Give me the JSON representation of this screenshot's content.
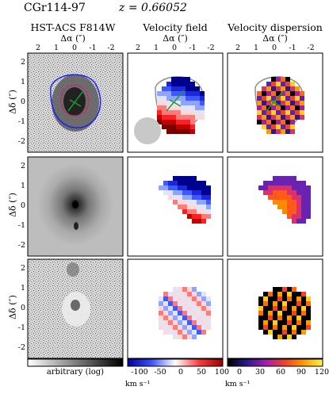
{
  "header": {
    "galaxy": "CGr114-97",
    "redshift": "z = 0.66052"
  },
  "columns": [
    {
      "title": "HST-ACS F814W",
      "axis_label": "Δα (″)"
    },
    {
      "title": "Velocity field",
      "axis_label": "Δα (″)"
    },
    {
      "title": "Velocity dispersion",
      "axis_label": "Δα (″)"
    }
  ],
  "x_ticks": [
    "2",
    "1",
    "0",
    "-1",
    "-2"
  ],
  "y_axis_label": "Δδ (″)",
  "y_ticks": [
    "2",
    "1",
    "0",
    "-1",
    "-2"
  ],
  "colorbars": [
    {
      "label": "arbitrary (log)",
      "ticks": [],
      "unit": ""
    },
    {
      "label": "",
      "ticks": [
        "-100",
        "-50",
        "0",
        "50",
        "100"
      ],
      "unit": "km s⁻¹"
    },
    {
      "label": "",
      "ticks": [
        "0",
        "30",
        "60",
        "90",
        "120"
      ],
      "unit": "km s⁻¹"
    }
  ]
}
